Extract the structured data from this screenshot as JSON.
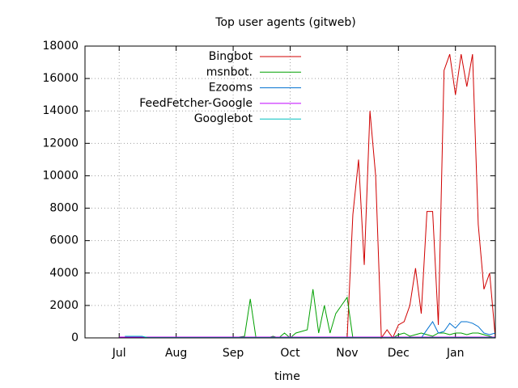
{
  "chart_data": {
    "type": "line",
    "title": "Top user agents (gitweb)",
    "xlabel": "time",
    "categories": [
      null,
      null,
      null,
      null,
      null,
      null,
      "Jul",
      null,
      null,
      null,
      null,
      null,
      null,
      null,
      null,
      null,
      "Aug",
      null,
      null,
      null,
      null,
      null,
      null,
      null,
      null,
      null,
      "Sep",
      null,
      null,
      null,
      null,
      null,
      null,
      null,
      null,
      null,
      "Oct",
      null,
      null,
      null,
      null,
      null,
      null,
      null,
      null,
      null,
      "Nov",
      null,
      null,
      null,
      null,
      null,
      null,
      null,
      null,
      "Dec",
      null,
      null,
      null,
      null,
      null,
      null,
      null,
      null,
      null,
      "Jan",
      null,
      null,
      null,
      null,
      null,
      null,
      null
    ],
    "series": [
      {
        "name": "Bingbot",
        "color": "#d00000",
        "values": [
          0,
          0,
          0,
          0,
          0,
          0,
          0,
          0,
          0,
          0,
          0,
          0,
          0,
          0,
          0,
          0,
          0,
          0,
          0,
          0,
          0,
          0,
          0,
          0,
          0,
          0,
          0,
          0,
          0,
          0,
          0,
          0,
          0,
          0,
          0,
          0,
          0,
          0,
          0,
          0,
          0,
          0,
          0,
          0,
          0,
          0,
          0,
          7600,
          11000,
          4500,
          14000,
          10000,
          0,
          500,
          0,
          800,
          1000,
          2000,
          4300,
          1500,
          7800,
          7800,
          800,
          16500,
          17500,
          15000,
          17500,
          15500,
          17500,
          7000,
          3000,
          4000,
          0
        ]
      },
      {
        "name": "msnbot.",
        "color": "#00a000",
        "values": [
          0,
          0,
          0,
          0,
          0,
          0,
          0,
          0,
          0,
          0,
          0,
          0,
          0,
          0,
          0,
          0,
          0,
          0,
          0,
          0,
          0,
          0,
          0,
          0,
          0,
          0,
          0,
          50,
          100,
          2400,
          0,
          0,
          0,
          100,
          0,
          300,
          0,
          300,
          400,
          500,
          3000,
          300,
          2000,
          300,
          1500,
          2000,
          2500,
          0,
          0,
          0,
          0,
          0,
          0,
          0,
          0,
          200,
          300,
          100,
          200,
          300,
          200,
          100,
          300,
          300,
          200,
          300,
          300,
          200,
          300,
          300,
          200,
          100,
          0
        ]
      },
      {
        "name": "Ezooms",
        "color": "#0070d0",
        "values": [
          0,
          0,
          0,
          0,
          0,
          0,
          0,
          0,
          0,
          0,
          0,
          0,
          0,
          0,
          0,
          0,
          0,
          0,
          0,
          0,
          0,
          0,
          0,
          0,
          0,
          0,
          0,
          0,
          0,
          0,
          0,
          0,
          0,
          0,
          0,
          0,
          0,
          0,
          0,
          0,
          0,
          0,
          0,
          0,
          0,
          0,
          0,
          0,
          0,
          0,
          0,
          0,
          0,
          0,
          0,
          0,
          0,
          0,
          0,
          0,
          500,
          1000,
          300,
          400,
          900,
          600,
          1000,
          1000,
          900,
          700,
          300,
          200,
          300
        ]
      },
      {
        "name": "FeedFetcher-Google",
        "color": "#c000ff",
        "values": [
          null,
          null,
          null,
          null,
          null,
          null,
          50,
          50,
          50,
          50,
          50,
          50,
          50,
          50,
          50,
          50,
          50,
          50,
          50,
          50,
          50,
          50,
          50,
          50,
          50,
          50,
          50,
          50,
          50,
          50,
          50,
          50,
          50,
          50,
          50,
          50,
          50,
          50,
          50,
          50,
          50,
          50,
          50,
          50,
          50,
          50,
          50,
          50,
          50,
          50,
          50,
          50,
          50,
          50,
          50,
          50,
          50,
          50,
          50,
          50,
          50,
          50,
          50,
          50,
          50,
          50,
          50,
          50,
          50,
          50,
          50,
          50,
          50
        ]
      },
      {
        "name": "Googlebot",
        "color": "#00c0c0",
        "values": [
          null,
          null,
          null,
          null,
          null,
          null,
          null,
          100,
          100,
          100,
          100,
          20,
          20,
          20,
          20,
          20,
          20,
          20,
          20,
          20,
          20,
          20,
          20,
          20,
          20,
          20,
          20,
          20,
          20,
          20,
          20,
          20,
          20,
          20,
          20,
          20,
          20,
          20,
          20,
          20,
          20,
          20,
          20,
          20,
          20,
          20,
          20,
          20,
          20,
          20,
          20,
          20,
          20,
          20,
          20,
          20,
          20,
          20,
          20,
          20,
          20,
          20,
          20,
          20,
          20,
          20,
          20,
          20,
          20,
          20,
          20,
          20,
          20
        ]
      }
    ],
    "ylim": [
      0,
      18000
    ],
    "yticks": [
      0,
      2000,
      4000,
      6000,
      8000,
      10000,
      12000,
      14000,
      16000,
      18000
    ],
    "grid": true,
    "legend": "top-left"
  }
}
